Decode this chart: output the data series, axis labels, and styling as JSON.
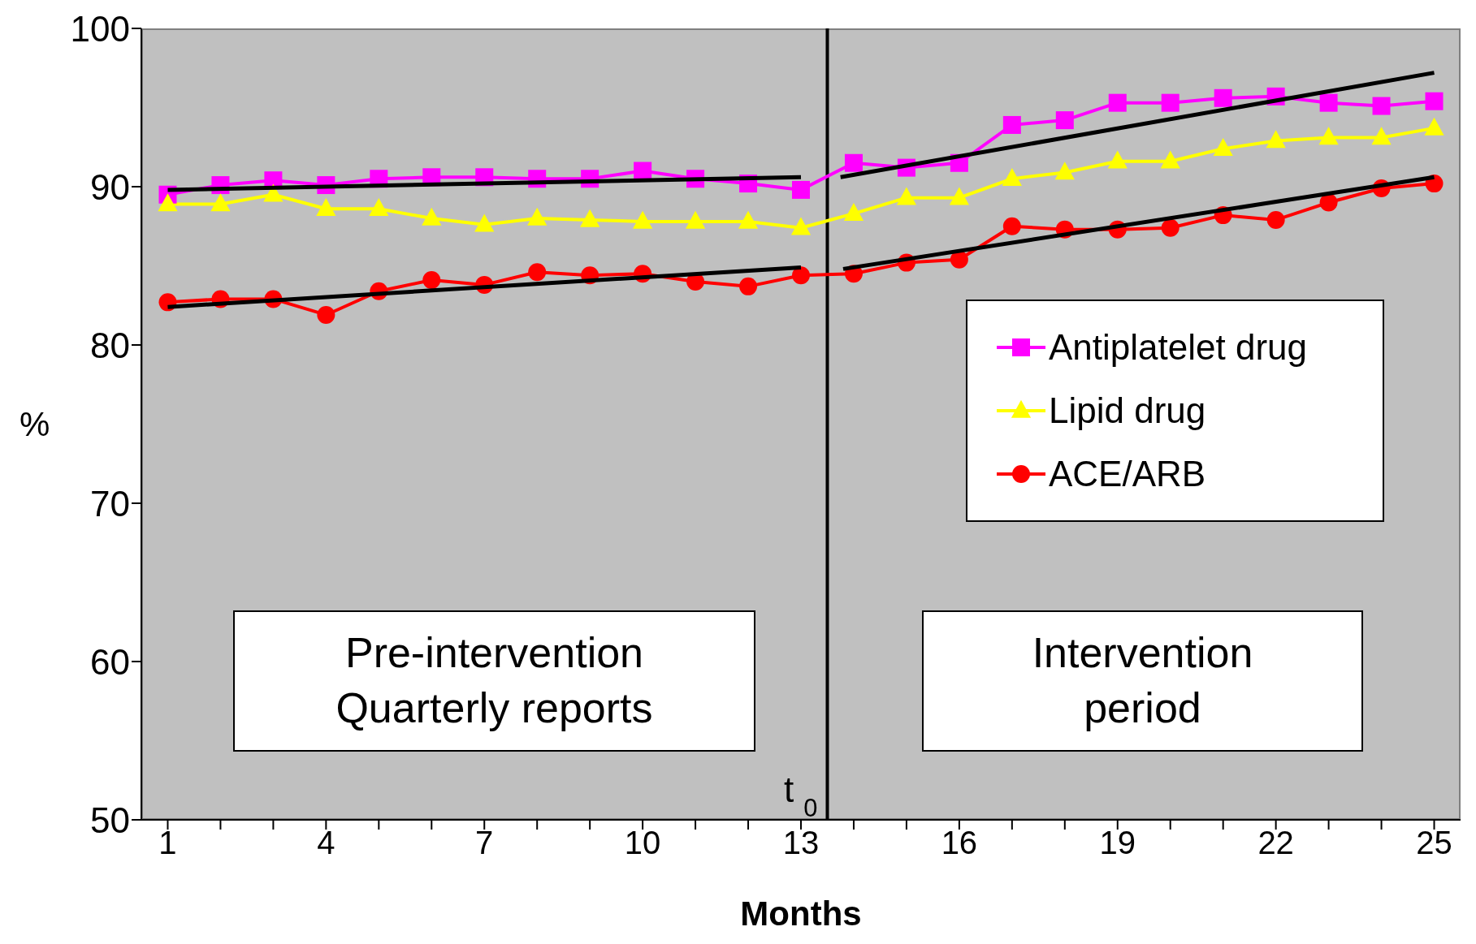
{
  "chart_data": {
    "type": "line",
    "xlabel": "Months",
    "ylabel": "%",
    "x": [
      1,
      2,
      3,
      4,
      5,
      6,
      7,
      8,
      9,
      10,
      11,
      12,
      13,
      14,
      15,
      16,
      17,
      18,
      19,
      20,
      21,
      22,
      23,
      24,
      25
    ],
    "xlim": [
      0.5,
      25.5
    ],
    "xticks": [
      1,
      {
        "value": 2,
        "label": null
      },
      {
        "value": 3,
        "label": null
      },
      4,
      {
        "value": 5,
        "label": null
      },
      {
        "value": 6,
        "label": null
      },
      7,
      {
        "value": 8,
        "label": null
      },
      {
        "value": 9,
        "label": null
      },
      10,
      {
        "value": 11,
        "label": null
      },
      {
        "value": 12,
        "label": null
      },
      13,
      {
        "value": 14,
        "label": null
      },
      {
        "value": 15,
        "label": null
      },
      16,
      {
        "value": 17,
        "label": null
      },
      {
        "value": 18,
        "label": null
      },
      19,
      {
        "value": 20,
        "label": null
      },
      {
        "value": 21,
        "label": null
      },
      22,
      {
        "value": 23,
        "label": null
      },
      {
        "value": 24,
        "label": null
      },
      25
    ],
    "ylim": [
      50,
      100
    ],
    "yticks": [
      50,
      60,
      70,
      80,
      90,
      100
    ],
    "legend": "right",
    "line_style": "solid",
    "series": [
      {
        "name": "Antiplatelet drug",
        "color": "#ff00ff",
        "marker": "square",
        "values": [
          89.5,
          90.1,
          90.4,
          90.1,
          90.5,
          90.6,
          90.6,
          90.5,
          90.5,
          91.0,
          90.5,
          90.2,
          89.8,
          91.5,
          91.2,
          91.5,
          93.9,
          94.2,
          95.3,
          95.3,
          95.6,
          95.7,
          95.3,
          95.1,
          95.4
        ]
      },
      {
        "name": "Lipid drug",
        "color": "#ffff00",
        "marker": "triangle",
        "values": [
          88.9,
          88.9,
          89.5,
          88.6,
          88.6,
          88.0,
          87.6,
          88.0,
          87.9,
          87.8,
          87.8,
          87.8,
          87.4,
          88.3,
          89.3,
          89.3,
          90.5,
          90.9,
          91.6,
          91.6,
          92.4,
          92.9,
          93.1,
          93.1,
          93.7
        ]
      },
      {
        "name": "ACE/ARB",
        "color": "#ff0000",
        "marker": "circle",
        "values": [
          82.7,
          82.9,
          82.9,
          81.9,
          83.4,
          84.1,
          83.8,
          84.6,
          84.4,
          84.5,
          84.0,
          83.7,
          84.4,
          84.5,
          85.2,
          85.4,
          87.5,
          87.3,
          87.3,
          87.4,
          88.2,
          87.9,
          89.0,
          89.9,
          90.2
        ]
      },
      {
        "type": "line",
        "color": "#000000",
        "marker": "none",
        "x": [
          1,
          13
        ],
        "values": [
          89.8,
          90.6
        ]
      },
      {
        "type": "line",
        "color": "#000000",
        "marker": "none",
        "x": [
          13.75,
          25
        ],
        "values": [
          90.6,
          97.2
        ]
      },
      {
        "type": "line",
        "color": "#000000",
        "marker": "none",
        "x": [
          1,
          13
        ],
        "values": [
          82.4,
          84.9
        ]
      },
      {
        "type": "line",
        "color": "#000000",
        "marker": "none",
        "x": [
          13.8,
          25
        ],
        "values": [
          84.8,
          90.6
        ]
      }
    ],
    "ref_lines": [
      {
        "axis": "x",
        "value": 13.5,
        "label": "t $_{0}$",
        "color": "#000000"
      }
    ],
    "annotations": [
      "Pre-intervention\nQuarterly reports",
      "Intervention\nperiod"
    ]
  }
}
